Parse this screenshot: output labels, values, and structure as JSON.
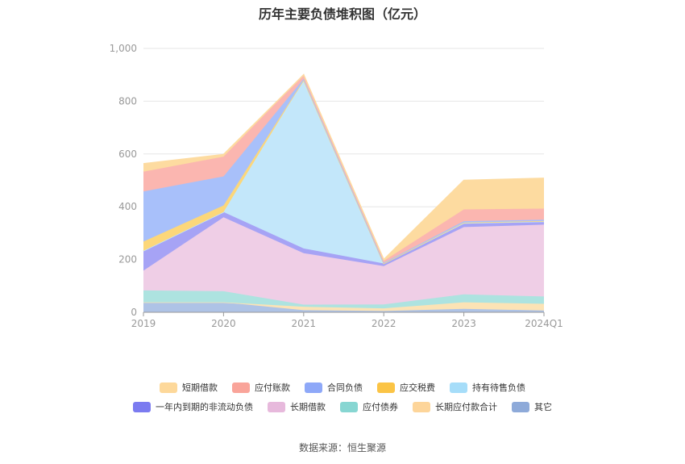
{
  "source_text": "数据来源：恒生聚源",
  "chart_data": {
    "type": "area",
    "title": "历年主要负债堆积图（亿元）",
    "xlabel": "",
    "ylabel": "",
    "categories": [
      "2019",
      "2020",
      "2021",
      "2022",
      "2023",
      "2024Q1"
    ],
    "ylim": [
      0,
      1000
    ],
    "yticks": [
      0,
      200,
      400,
      600,
      800,
      1000
    ],
    "ytick_labels": [
      "0",
      "200",
      "400",
      "600",
      "800",
      "1,000"
    ],
    "grid": true,
    "legend_position": "bottom",
    "stack_order": [
      "其它",
      "长期应付款合计",
      "应付债券",
      "长期借款",
      "一年内到期的非流动负债",
      "持有待售负债",
      "应交税费",
      "合同负债",
      "应付账款",
      "短期借款"
    ],
    "series": [
      {
        "name": "短期借款",
        "color": "#FDDBA0",
        "values": [
          30,
          8,
          0,
          5,
          110,
          115
        ]
      },
      {
        "name": "应付账款",
        "color": "#FBB6B0",
        "values": [
          75,
          75,
          15,
          7,
          45,
          42
        ]
      },
      {
        "name": "合同负债",
        "color": "#A8C0FA",
        "values": [
          190,
          110,
          5,
          3,
          5,
          5
        ]
      },
      {
        "name": "应交税费",
        "color": "#FCD77A",
        "values": [
          35,
          25,
          0,
          0,
          2,
          2
        ]
      },
      {
        "name": "持有待售负债",
        "color": "#C3E7FA",
        "values": [
          0,
          0,
          638,
          0,
          0,
          0
        ]
      },
      {
        "name": "一年内到期的非流动负债",
        "color": "#A6A3F5",
        "values": [
          75,
          20,
          18,
          10,
          15,
          12
        ]
      },
      {
        "name": "长期借款",
        "color": "#EFCEE6",
        "values": [
          75,
          280,
          195,
          145,
          255,
          272
        ]
      },
      {
        "name": "应付债券",
        "color": "#ADE3E0",
        "values": [
          45,
          42,
          8,
          15,
          30,
          28
        ]
      },
      {
        "name": "长期应付款合计",
        "color": "#FCE3B5",
        "values": [
          0,
          0,
          13,
          10,
          25,
          25
        ]
      },
      {
        "name": "其它",
        "color": "#AEC3E6",
        "values": [
          38,
          38,
          8,
          5,
          13,
          7
        ]
      }
    ],
    "legend_rows": [
      [
        {
          "name": "短期借款",
          "swatch": "#FDD89A"
        },
        {
          "name": "应付账款",
          "swatch": "#F9A49A"
        },
        {
          "name": "合同负债",
          "swatch": "#8EA8F8"
        },
        {
          "name": "应交税费",
          "swatch": "#FBC445"
        },
        {
          "name": "持有待售负债",
          "swatch": "#A6DDF9"
        }
      ],
      [
        {
          "name": "一年内到期的非流动负债",
          "swatch": "#7B7BF0"
        },
        {
          "name": "长期借款",
          "swatch": "#E7B9DC"
        },
        {
          "name": "应付债券",
          "swatch": "#87D6D2"
        },
        {
          "name": "长期应付款合计",
          "swatch": "#FDD59A"
        },
        {
          "name": "其它",
          "swatch": "#8EAAD9"
        }
      ]
    ]
  }
}
